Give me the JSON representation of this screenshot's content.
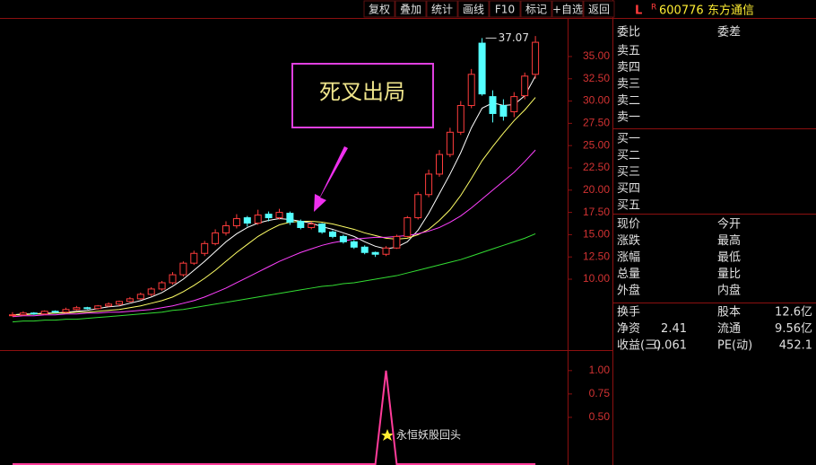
{
  "toolbar": {
    "buttons": [
      "复权",
      "叠加",
      "统计",
      "画线",
      "F10",
      "标记",
      "+自选",
      "返回"
    ]
  },
  "quote": {
    "flag": "L",
    "badge": "R",
    "code": "600776",
    "name": "东方通信",
    "header": [
      "委比",
      "委差"
    ],
    "asks": [
      "卖五",
      "卖四",
      "卖三",
      "卖二",
      "卖一"
    ],
    "bids": [
      "买一",
      "买二",
      "买三",
      "买四",
      "买五"
    ],
    "stats": [
      [
        "现价",
        "今开"
      ],
      [
        "涨跌",
        "最高"
      ],
      [
        "涨幅",
        "最低"
      ],
      [
        "总量",
        "量比"
      ],
      [
        "外盘",
        "内盘"
      ]
    ],
    "fundamentals": [
      {
        "left_label": "换手",
        "right_label": "股本",
        "right_value": "12.6亿"
      },
      {
        "left_label": "净资",
        "left_value": 2.41,
        "right_label": "流通",
        "right_value": "9.56亿"
      },
      {
        "left_label": "收益(三)",
        "left_value": 0.061,
        "right_label": "PE(动)",
        "right_value": 452.1
      }
    ]
  },
  "chart_data": [
    {
      "type": "candlestick",
      "annotation": "死叉出局",
      "up_color": "#ff3c3c",
      "down_color": "#54ffff",
      "ylim": [
        2.04,
        39.33
      ],
      "yticks": [
        {
          "value": 10,
          "label": "10.00"
        },
        {
          "value": 12.5,
          "label": "12.50"
        },
        {
          "value": 15,
          "label": "15.00"
        },
        {
          "value": 17.5,
          "label": "17.50"
        },
        {
          "value": 20,
          "label": "20.00"
        },
        {
          "value": 22.5,
          "label": "22.50"
        },
        {
          "value": 25,
          "label": "25.00"
        },
        {
          "value": 27.5,
          "label": "27.50"
        },
        {
          "value": 30,
          "label": "30.00"
        },
        {
          "value": 32.5,
          "label": "32.50"
        },
        {
          "value": 35,
          "label": "35.00"
        }
      ],
      "open": [
        5.9,
        6.0,
        6.2,
        6.1,
        6.4,
        6.3,
        6.6,
        6.8,
        6.7,
        7.0,
        7.2,
        7.5,
        7.8,
        8.3,
        8.9,
        9.6,
        10.5,
        11.8,
        12.9,
        14.0,
        15.2,
        16.0,
        16.9,
        16.3,
        17.3,
        16.9,
        17.4,
        16.5,
        15.8,
        16.2,
        15.3,
        14.8,
        14.2,
        13.6,
        13.0,
        12.8,
        13.5,
        14.8,
        16.9,
        19.5,
        21.8,
        24.0,
        26.5,
        29.5,
        36.5,
        30.5,
        29.5,
        28.8,
        30.6,
        33.0
      ],
      "high": [
        6.3,
        6.4,
        6.3,
        6.5,
        6.5,
        6.8,
        7.0,
        6.9,
        7.1,
        7.4,
        7.6,
        8.0,
        8.5,
        9.1,
        9.8,
        10.8,
        12.0,
        13.2,
        14.3,
        15.6,
        16.5,
        17.3,
        17.1,
        17.8,
        17.6,
        17.9,
        17.6,
        16.7,
        16.5,
        16.3,
        15.5,
        15.0,
        14.4,
        13.8,
        13.1,
        13.7,
        15.0,
        17.1,
        19.8,
        22.3,
        24.5,
        27.0,
        30.0,
        33.6,
        37.07,
        31.2,
        30.2,
        31.0,
        33.2,
        37.3
      ],
      "low": [
        5.8,
        5.9,
        6.0,
        6.0,
        6.2,
        6.2,
        6.5,
        6.6,
        6.6,
        6.9,
        7.0,
        7.4,
        7.7,
        8.1,
        8.7,
        9.4,
        10.3,
        11.6,
        12.6,
        13.8,
        14.9,
        15.7,
        15.9,
        16.1,
        16.5,
        16.7,
        16.1,
        15.6,
        15.6,
        15.1,
        14.6,
        14.0,
        13.4,
        12.8,
        12.5,
        12.6,
        13.4,
        14.7,
        16.7,
        19.2,
        21.5,
        23.7,
        26.2,
        29.2,
        30.6,
        27.6,
        27.8,
        28.2,
        30.2,
        32.5
      ],
      "close": [
        6.0,
        6.2,
        6.1,
        6.4,
        6.3,
        6.6,
        6.8,
        6.7,
        7.0,
        7.2,
        7.5,
        7.8,
        8.3,
        8.9,
        9.6,
        10.5,
        11.8,
        12.9,
        14.0,
        15.2,
        16.0,
        16.8,
        16.3,
        17.2,
        16.9,
        17.5,
        16.4,
        15.8,
        16.2,
        15.3,
        14.8,
        14.2,
        13.6,
        13.0,
        12.8,
        13.5,
        14.8,
        16.9,
        19.5,
        21.8,
        24.0,
        26.5,
        29.5,
        33.0,
        30.8,
        28.6,
        28.3,
        30.5,
        32.8,
        36.6
      ],
      "series": [
        {
          "color": "#ffffff",
          "values": [
            6.0,
            6.1,
            6.1,
            6.2,
            6.2,
            6.3,
            6.4,
            6.5,
            6.7,
            6.9,
            7.0,
            7.3,
            7.6,
            8.0,
            8.5,
            9.2,
            10.0,
            11.0,
            12.0,
            13.1,
            14.2,
            15.1,
            15.8,
            16.3,
            16.6,
            16.8,
            16.7,
            16.5,
            16.3,
            15.9,
            15.6,
            15.2,
            14.8,
            14.2,
            13.7,
            13.4,
            13.6,
            14.2,
            15.5,
            17.4,
            19.6,
            21.8,
            24.2,
            27.0,
            29.2,
            29.8,
            29.5,
            29.6,
            30.6,
            32.8
          ]
        },
        {
          "color": "#ffff66",
          "values": [
            6.0,
            6.0,
            6.1,
            6.1,
            6.2,
            6.2,
            6.3,
            6.3,
            6.4,
            6.5,
            6.6,
            6.8,
            7.0,
            7.3,
            7.6,
            8.0,
            8.6,
            9.3,
            10.1,
            11.0,
            12.0,
            13.0,
            13.9,
            14.8,
            15.5,
            16.1,
            16.4,
            16.5,
            16.5,
            16.4,
            16.2,
            15.9,
            15.6,
            15.2,
            14.9,
            14.6,
            14.5,
            14.6,
            15.0,
            15.6,
            16.6,
            17.8,
            19.4,
            21.3,
            23.3,
            24.9,
            26.4,
            27.8,
            29.0,
            30.4
          ]
        },
        {
          "color": "#ff40ff",
          "values": [
            5.8,
            5.9,
            5.9,
            6.0,
            6.0,
            6.1,
            6.1,
            6.2,
            6.2,
            6.3,
            6.3,
            6.4,
            6.5,
            6.6,
            6.8,
            7.0,
            7.3,
            7.6,
            8.0,
            8.5,
            9.0,
            9.6,
            10.2,
            10.8,
            11.4,
            12.0,
            12.5,
            13.0,
            13.4,
            13.8,
            14.1,
            14.3,
            14.5,
            14.6,
            14.7,
            14.7,
            14.8,
            14.9,
            15.1,
            15.4,
            15.8,
            16.4,
            17.1,
            18.0,
            19.0,
            20.0,
            21.0,
            22.0,
            23.2,
            24.5
          ]
        },
        {
          "color": "#33dd33",
          "values": [
            5.2,
            5.3,
            5.3,
            5.4,
            5.4,
            5.5,
            5.5,
            5.6,
            5.7,
            5.8,
            5.9,
            6.0,
            6.1,
            6.2,
            6.3,
            6.5,
            6.6,
            6.8,
            7.0,
            7.2,
            7.4,
            7.6,
            7.8,
            8.0,
            8.2,
            8.4,
            8.6,
            8.8,
            9.0,
            9.2,
            9.3,
            9.5,
            9.6,
            9.8,
            10.0,
            10.2,
            10.4,
            10.7,
            11.0,
            11.3,
            11.6,
            11.9,
            12.2,
            12.6,
            13.0,
            13.4,
            13.8,
            14.2,
            14.6,
            15.1
          ]
        }
      ]
    },
    {
      "type": "line",
      "label": "永恒妖股回头",
      "ylim": [
        0,
        1.2
      ],
      "yticks": [
        {
          "value": 0.5,
          "label": "0.50"
        },
        {
          "value": 0.75,
          "label": "0.75"
        },
        {
          "value": 1,
          "label": "1.00"
        }
      ],
      "series": [
        {
          "color": "#ff3c9a",
          "values": [
            0,
            0,
            0,
            0,
            0,
            0,
            0,
            0,
            0,
            0,
            0,
            0,
            0,
            0,
            0,
            0,
            0,
            0,
            0,
            0,
            0,
            0,
            0,
            0,
            0,
            0,
            0,
            0,
            0,
            0,
            0,
            0,
            0,
            0,
            0,
            1,
            0,
            0,
            0,
            0,
            0,
            0,
            0,
            0,
            0,
            0,
            0,
            0,
            0,
            0
          ]
        }
      ]
    }
  ]
}
